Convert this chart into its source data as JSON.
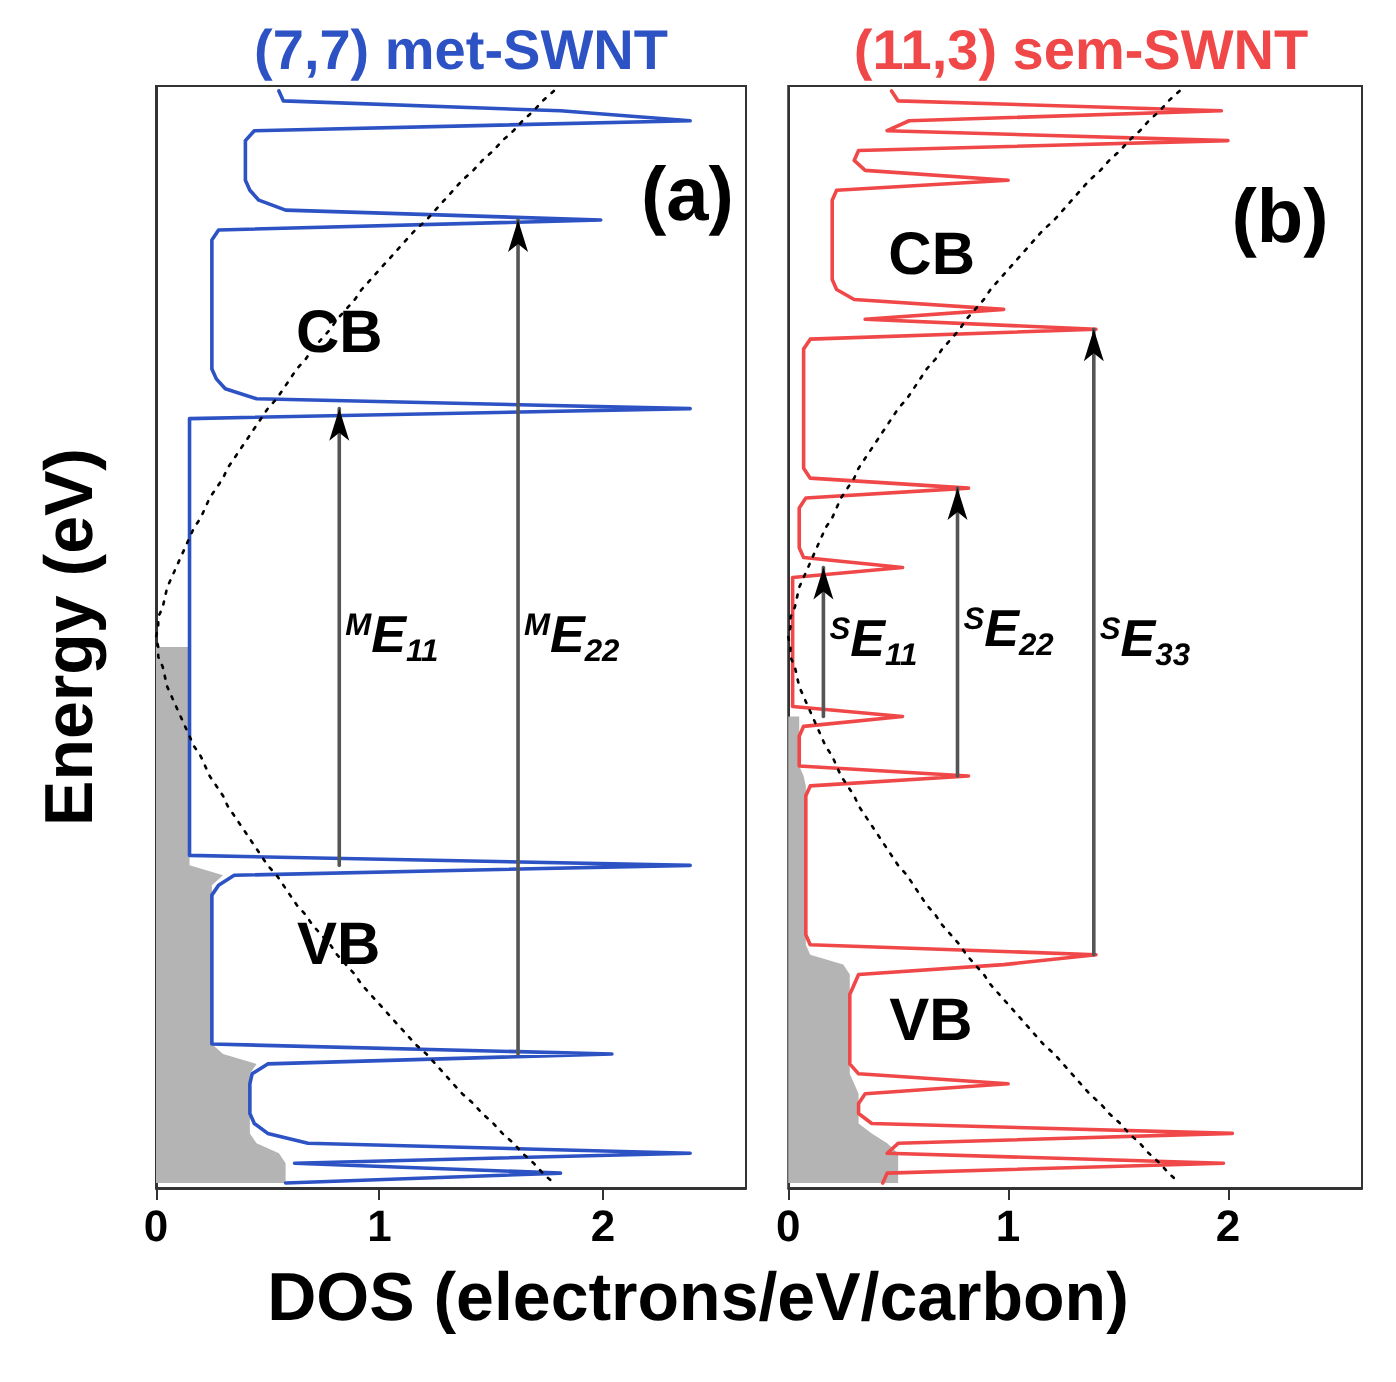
{
  "chart_data": [
    {
      "type": "line",
      "title": "(7,7) met-SWNT",
      "ylabel": "Energy (eV)",
      "xlabel": "DOS (electrons/eV/carbon)",
      "orientation": "horizontal",
      "tick_labels": "x",
      "marker": "none",
      "line_style": "solid",
      "xlim": [
        0,
        2.64
      ],
      "xticks": [
        0,
        1,
        2
      ],
      "categories": [
        null,
        null,
        null,
        null,
        null,
        null,
        null,
        null,
        null,
        null,
        null,
        null,
        null,
        null,
        null,
        null,
        null,
        null,
        null,
        null,
        null,
        null,
        null,
        null,
        null,
        null,
        null,
        null,
        null,
        null,
        null,
        null,
        null,
        null,
        null,
        null,
        null,
        null,
        null,
        null,
        null,
        null,
        null,
        null,
        null,
        null,
        null,
        null,
        null,
        null,
        null,
        null,
        null,
        null,
        null,
        null,
        null,
        null,
        null,
        null,
        null,
        null,
        null,
        null,
        null,
        null,
        null,
        null,
        null,
        null,
        null,
        null,
        null,
        null,
        null,
        null,
        null,
        null,
        null,
        null,
        null,
        null,
        null,
        null,
        null,
        null,
        null,
        null,
        null,
        null,
        null,
        null,
        null,
        null,
        null,
        null,
        null,
        null,
        null,
        null,
        null,
        null,
        null,
        null,
        null,
        null,
        null,
        null,
        null,
        null,
        null
      ],
      "series": [
        {
          "color": "#2d52c4",
          "values": [
            0.55,
            0.57,
            1.81,
            2.39,
            0.44,
            0.4,
            0.4,
            0.4,
            0.4,
            0.4,
            0.42,
            0.46,
            0.58,
            1.99,
            0.28,
            0.25,
            0.25,
            0.25,
            0.25,
            0.25,
            0.25,
            0.25,
            0.25,
            0.25,
            0.25,
            0.25,
            0.25,
            0.25,
            0.25,
            0.27,
            0.31,
            0.45,
            2.39,
            0.15,
            0.15,
            0.15,
            0.15,
            0.15,
            0.15,
            0.15,
            0.15,
            0.15,
            0.15,
            0.15,
            0.15,
            0.15,
            0.15,
            0.15,
            0.15,
            0.15,
            0.15,
            0.15,
            0.15,
            0.15,
            0.15,
            0.15,
            0.15,
            0.15,
            0.15,
            0.15,
            0.15,
            0.15,
            0.15,
            0.15,
            0.15,
            0.15,
            0.15,
            0.15,
            0.15,
            0.15,
            0.15,
            0.15,
            0.15,
            0.15,
            0.15,
            0.15,
            0.15,
            0.15,
            2.39,
            0.35,
            0.28,
            0.25,
            0.25,
            0.25,
            0.25,
            0.25,
            0.25,
            0.25,
            0.25,
            0.25,
            0.25,
            0.25,
            0.25,
            0.25,
            0.25,
            0.25,
            0.25,
            2.04,
            0.5,
            0.43,
            0.42,
            0.42,
            0.42,
            0.42,
            0.44,
            0.5,
            0.68,
            2.39,
            0.62,
            1.81,
            0.58
          ]
        },
        {
          "type": "area",
          "color": "#b4b4b4",
          "values": [
            null,
            null,
            null,
            null,
            null,
            null,
            null,
            null,
            null,
            null,
            null,
            null,
            null,
            null,
            null,
            null,
            null,
            null,
            null,
            null,
            null,
            null,
            null,
            null,
            null,
            null,
            null,
            null,
            null,
            null,
            null,
            null,
            null,
            null,
            null,
            null,
            null,
            null,
            null,
            null,
            null,
            null,
            null,
            null,
            null,
            null,
            null,
            null,
            null,
            null,
            null,
            null,
            null,
            null,
            null,
            null,
            0.15,
            0.15,
            0.15,
            0.15,
            0.15,
            0.15,
            0.15,
            0.15,
            0.15,
            0.15,
            0.15,
            0.15,
            0.15,
            0.15,
            0.15,
            0.15,
            0.15,
            0.15,
            0.15,
            0.15,
            0.15,
            0.15,
            0.15,
            0.3,
            0.25,
            0.25,
            0.25,
            0.25,
            0.25,
            0.25,
            0.25,
            0.25,
            0.25,
            0.25,
            0.25,
            0.25,
            0.25,
            0.25,
            0.25,
            0.25,
            0.25,
            0.3,
            0.45,
            0.42,
            0.42,
            0.42,
            0.42,
            0.42,
            0.42,
            0.42,
            0.45,
            0.55,
            0.58,
            0.58,
            0.58
          ]
        },
        {
          "color": "#000000",
          "line_style": "dotted",
          "values": [
            1.78,
            1.73,
            1.69,
            1.64,
            1.6,
            1.55,
            1.51,
            1.46,
            1.42,
            1.37,
            1.33,
            1.29,
            1.25,
            1.21,
            1.16,
            1.12,
            1.08,
            1.04,
            1.0,
            0.96,
            0.92,
            0.89,
            0.85,
            0.81,
            0.78,
            0.74,
            0.7,
            0.67,
            0.63,
            0.6,
            0.57,
            0.54,
            0.5,
            0.47,
            0.44,
            0.41,
            0.38,
            0.35,
            0.32,
            0.3,
            0.27,
            0.24,
            0.22,
            0.2,
            0.17,
            0.15,
            0.13,
            0.11,
            0.09,
            0.07,
            0.05,
            0.04,
            0.03,
            0.01,
            0.01,
            0,
            0.01,
            0.01,
            0.03,
            0.04,
            0.05,
            0.07,
            0.09,
            0.11,
            0.13,
            0.15,
            0.17,
            0.2,
            0.22,
            0.24,
            0.27,
            0.3,
            0.32,
            0.35,
            0.38,
            0.41,
            0.44,
            0.47,
            0.5,
            0.54,
            0.57,
            0.6,
            0.63,
            0.67,
            0.7,
            0.74,
            0.78,
            0.81,
            0.85,
            0.89,
            0.92,
            0.96,
            1.0,
            1.04,
            1.08,
            1.12,
            1.16,
            1.21,
            1.25,
            1.29,
            1.33,
            1.37,
            1.42,
            1.46,
            1.51,
            1.55,
            1.6,
            1.64,
            1.69,
            1.73,
            1.78
          ]
        },
        {
          "color": "#555555",
          "values": [
            null,
            null,
            null,
            null,
            null,
            null,
            null,
            null,
            null,
            null,
            null,
            null,
            null,
            null,
            null,
            null,
            null,
            null,
            null,
            null,
            null,
            null,
            null,
            null,
            null,
            null,
            null,
            null,
            null,
            null,
            null,
            null,
            0.82,
            0.82,
            0.82,
            0.82,
            0.82,
            0.82,
            0.82,
            0.82,
            0.82,
            0.82,
            0.82,
            0.82,
            0.82,
            0.82,
            0.82,
            0.82,
            0.82,
            0.82,
            0.82,
            0.82,
            0.82,
            0.82,
            0.82,
            0.82,
            0.82,
            0.82,
            0.82,
            0.82,
            0.82,
            0.82,
            0.82,
            0.82,
            0.82,
            0.82,
            0.82,
            0.82,
            0.82,
            0.82,
            0.82,
            0.82,
            0.82,
            0.82,
            0.82,
            0.82,
            0.82,
            0.82,
            0.82,
            null,
            null,
            null,
            null,
            null,
            null,
            null,
            null,
            null,
            null,
            null,
            null,
            null,
            null,
            null,
            null,
            null,
            null,
            null,
            null,
            null,
            null,
            null,
            null,
            null,
            null,
            null,
            null,
            null,
            null,
            null,
            null
          ]
        },
        {
          "color": "#555555",
          "values": [
            null,
            null,
            null,
            null,
            null,
            null,
            null,
            null,
            null,
            null,
            null,
            null,
            null,
            1.62,
            1.62,
            1.62,
            1.62,
            1.62,
            1.62,
            1.62,
            1.62,
            1.62,
            1.62,
            1.62,
            1.62,
            1.62,
            1.62,
            1.62,
            1.62,
            1.62,
            1.62,
            1.62,
            1.62,
            1.62,
            1.62,
            1.62,
            1.62,
            1.62,
            1.62,
            1.62,
            1.62,
            1.62,
            1.62,
            1.62,
            1.62,
            1.62,
            1.62,
            1.62,
            1.62,
            1.62,
            1.62,
            1.62,
            1.62,
            1.62,
            1.62,
            1.62,
            1.62,
            1.62,
            1.62,
            1.62,
            1.62,
            1.62,
            1.62,
            1.62,
            1.62,
            1.62,
            1.62,
            1.62,
            1.62,
            1.62,
            1.62,
            1.62,
            1.62,
            1.62,
            1.62,
            1.62,
            1.62,
            1.62,
            1.62,
            1.62,
            1.62,
            1.62,
            1.62,
            1.62,
            1.62,
            1.62,
            1.62,
            1.62,
            1.62,
            1.62,
            1.62,
            1.62,
            1.62,
            1.62,
            1.62,
            1.62,
            1.62,
            1.62,
            null,
            null,
            null,
            null,
            null,
            null,
            null,
            null,
            null,
            null,
            null,
            null,
            null
          ]
        }
      ],
      "annotations": [
        "(a)",
        "CB",
        "VB",
        "$^{M}$E$_{11}$",
        "$^{M}$E$_{22}$"
      ]
    },
    {
      "type": "line",
      "title": "(11,3) sem-SWNT",
      "orientation": "horizontal",
      "tick_labels": "x",
      "marker": "none",
      "line_style": "solid",
      "xlim": [
        0,
        2.61
      ],
      "xticks": [
        0,
        1,
        2
      ],
      "categories": [
        null,
        null,
        null,
        null,
        null,
        null,
        null,
        null,
        null,
        null,
        null,
        null,
        null,
        null,
        null,
        null,
        null,
        null,
        null,
        null,
        null,
        null,
        null,
        null,
        null,
        null,
        null,
        null,
        null,
        null,
        null,
        null,
        null,
        null,
        null,
        null,
        null,
        null,
        null,
        null,
        null,
        null,
        null,
        null,
        null,
        null,
        null,
        null,
        null,
        null,
        null,
        null,
        null,
        null,
        null,
        null,
        null,
        null,
        null,
        null,
        null,
        null,
        null,
        null,
        null,
        null,
        null,
        null,
        null,
        null,
        null,
        null,
        null,
        null,
        null,
        null,
        null,
        null,
        null,
        null,
        null,
        null,
        null,
        null,
        null,
        null,
        null,
        null,
        null,
        null,
        null,
        null,
        null,
        null,
        null,
        null,
        null,
        null,
        null,
        null,
        null,
        null,
        null,
        null,
        null,
        null,
        null,
        null,
        null,
        null,
        null
      ],
      "series": [
        {
          "color": "#f04848",
          "values": [
            0.47,
            0.5,
            1.97,
            0.55,
            0.45,
            2.0,
            0.32,
            0.3,
            0.35,
            1.0,
            0.22,
            0.2,
            0.2,
            0.2,
            0.2,
            0.2,
            0.2,
            0.2,
            0.2,
            0.2,
            0.22,
            0.3,
            0.98,
            0.35,
            1.4,
            0.1,
            0.07,
            0.07,
            0.07,
            0.07,
            0.07,
            0.07,
            0.07,
            0.07,
            0.07,
            0.07,
            0.07,
            0.07,
            0.07,
            0.1,
            0.82,
            0.08,
            0.05,
            0.05,
            0.05,
            0.05,
            0.05,
            0.07,
            0.52,
            0.02,
            0.02,
            0.02,
            0.02,
            0.02,
            0.02,
            0.02,
            0.02,
            0.02,
            0.02,
            0.02,
            0.02,
            0.02,
            0.02,
            0.52,
            0.07,
            0.05,
            0.05,
            0.05,
            0.05,
            0.82,
            0.1,
            0.08,
            0.08,
            0.08,
            0.08,
            0.08,
            0.08,
            0.08,
            0.08,
            0.08,
            0.08,
            0.08,
            0.08,
            0.08,
            0.08,
            0.08,
            0.1,
            1.4,
            0.98,
            0.32,
            0.3,
            0.28,
            0.28,
            0.28,
            0.28,
            0.28,
            0.28,
            0.28,
            0.28,
            0.32,
            1.0,
            0.35,
            0.32,
            0.32,
            0.38,
            2.02,
            0.5,
            0.45,
            1.98,
            0.45,
            0.43
          ]
        },
        {
          "type": "area",
          "color": "#b4b4b4",
          "values": [
            null,
            null,
            null,
            null,
            null,
            null,
            null,
            null,
            null,
            null,
            null,
            null,
            null,
            null,
            null,
            null,
            null,
            null,
            null,
            null,
            null,
            null,
            null,
            null,
            null,
            null,
            null,
            null,
            null,
            null,
            null,
            null,
            null,
            null,
            null,
            null,
            null,
            null,
            null,
            null,
            null,
            null,
            null,
            null,
            null,
            null,
            null,
            null,
            null,
            null,
            null,
            null,
            null,
            null,
            null,
            null,
            null,
            null,
            null,
            null,
            null,
            null,
            null,
            0.05,
            0.05,
            0.05,
            0.05,
            0.05,
            0.05,
            0.07,
            0.08,
            0.08,
            0.08,
            0.08,
            0.08,
            0.08,
            0.08,
            0.08,
            0.08,
            0.08,
            0.08,
            0.08,
            0.08,
            0.08,
            0.08,
            0.08,
            0.08,
            0.1,
            0.25,
            0.28,
            0.28,
            0.28,
            0.28,
            0.28,
            0.28,
            0.28,
            0.28,
            0.28,
            0.28,
            0.28,
            0.3,
            0.32,
            0.32,
            0.32,
            0.32,
            0.38,
            0.45,
            0.5,
            0.5,
            0.5,
            0.5
          ]
        },
        {
          "color": "#000000",
          "line_style": "dotted",
          "values": [
            1.78,
            1.73,
            1.69,
            1.64,
            1.6,
            1.55,
            1.51,
            1.46,
            1.42,
            1.37,
            1.33,
            1.29,
            1.25,
            1.21,
            1.16,
            1.12,
            1.08,
            1.04,
            1.0,
            0.96,
            0.92,
            0.89,
            0.85,
            0.81,
            0.78,
            0.74,
            0.7,
            0.67,
            0.63,
            0.6,
            0.57,
            0.54,
            0.5,
            0.47,
            0.44,
            0.41,
            0.38,
            0.35,
            0.32,
            0.3,
            0.27,
            0.24,
            0.22,
            0.2,
            0.17,
            0.15,
            0.13,
            0.11,
            0.09,
            0.07,
            0.05,
            0.04,
            0.03,
            0.01,
            0.01,
            0,
            0.01,
            0.01,
            0.03,
            0.04,
            0.05,
            0.07,
            0.09,
            0.11,
            0.13,
            0.15,
            0.17,
            0.2,
            0.22,
            0.24,
            0.27,
            0.3,
            0.32,
            0.35,
            0.38,
            0.41,
            0.44,
            0.47,
            0.5,
            0.54,
            0.57,
            0.6,
            0.63,
            0.67,
            0.7,
            0.74,
            0.78,
            0.81,
            0.85,
            0.89,
            0.92,
            0.96,
            1.0,
            1.04,
            1.08,
            1.12,
            1.16,
            1.21,
            1.25,
            1.29,
            1.33,
            1.37,
            1.42,
            1.46,
            1.51,
            1.55,
            1.6,
            1.64,
            1.69,
            1.73,
            1.78
          ]
        },
        {
          "color": "#555555",
          "values": [
            null,
            null,
            null,
            null,
            null,
            null,
            null,
            null,
            null,
            null,
            null,
            null,
            null,
            null,
            null,
            null,
            null,
            null,
            null,
            null,
            null,
            null,
            null,
            null,
            null,
            null,
            null,
            null,
            null,
            null,
            null,
            null,
            null,
            null,
            null,
            null,
            null,
            null,
            null,
            null,
            null,
            null,
            null,
            null,
            null,
            null,
            null,
            null,
            0.16,
            0.16,
            0.16,
            0.16,
            0.16,
            0.16,
            0.16,
            0.16,
            0.16,
            0.16,
            0.16,
            0.16,
            0.16,
            0.16,
            0.16,
            0.16,
            null,
            null,
            null,
            null,
            null,
            null,
            null,
            null,
            null,
            null,
            null,
            null,
            null,
            null,
            null,
            null,
            null,
            null,
            null,
            null,
            null,
            null,
            null,
            null,
            null,
            null,
            null,
            null,
            null,
            null,
            null,
            null,
            null,
            null,
            null,
            null,
            null,
            null,
            null,
            null,
            null,
            null,
            null,
            null,
            null,
            null,
            null
          ]
        },
        {
          "color": "#555555",
          "values": [
            null,
            null,
            null,
            null,
            null,
            null,
            null,
            null,
            null,
            null,
            null,
            null,
            null,
            null,
            null,
            null,
            null,
            null,
            null,
            null,
            null,
            null,
            null,
            null,
            null,
            null,
            null,
            null,
            null,
            null,
            null,
            null,
            null,
            null,
            null,
            null,
            null,
            null,
            null,
            null,
            0.77,
            0.77,
            0.77,
            0.77,
            0.77,
            0.77,
            0.77,
            0.77,
            0.77,
            0.77,
            0.77,
            0.77,
            0.77,
            0.77,
            0.77,
            0.77,
            0.77,
            0.77,
            0.77,
            0.77,
            0.77,
            0.77,
            0.77,
            0.77,
            0.77,
            0.77,
            0.77,
            0.77,
            0.77,
            0.77,
            null,
            null,
            null,
            null,
            null,
            null,
            null,
            null,
            null,
            null,
            null,
            null,
            null,
            null,
            null,
            null,
            null,
            null,
            null,
            null,
            null,
            null,
            null,
            null,
            null,
            null,
            null,
            null,
            null,
            null,
            null,
            null,
            null,
            null,
            null,
            null,
            null,
            null,
            null,
            null,
            null
          ]
        },
        {
          "color": "#555555",
          "values": [
            null,
            null,
            null,
            null,
            null,
            null,
            null,
            null,
            null,
            null,
            null,
            null,
            null,
            null,
            null,
            null,
            null,
            null,
            null,
            null,
            null,
            null,
            null,
            null,
            1.39,
            1.39,
            1.39,
            1.39,
            1.39,
            1.39,
            1.39,
            1.39,
            1.39,
            1.39,
            1.39,
            1.39,
            1.39,
            1.39,
            1.39,
            1.39,
            1.39,
            1.39,
            1.39,
            1.39,
            1.39,
            1.39,
            1.39,
            1.39,
            1.39,
            1.39,
            1.39,
            1.39,
            1.39,
            1.39,
            1.39,
            1.39,
            1.39,
            1.39,
            1.39,
            1.39,
            1.39,
            1.39,
            1.39,
            1.39,
            1.39,
            1.39,
            1.39,
            1.39,
            1.39,
            1.39,
            1.39,
            1.39,
            1.39,
            1.39,
            1.39,
            1.39,
            1.39,
            1.39,
            1.39,
            1.39,
            1.39,
            1.39,
            1.39,
            1.39,
            1.39,
            1.39,
            1.39,
            1.39,
            null,
            null,
            null,
            null,
            null,
            null,
            null,
            null,
            null,
            null,
            null,
            null,
            null,
            null,
            null,
            null,
            null,
            null,
            null,
            null,
            null,
            null,
            null
          ]
        }
      ],
      "annotations": [
        "(b)",
        "CB",
        "VB",
        "$^{S}$E$_{11}$",
        "$^{S}$E$_{22}$",
        "$^{S}$E$_{33}$"
      ]
    }
  ]
}
